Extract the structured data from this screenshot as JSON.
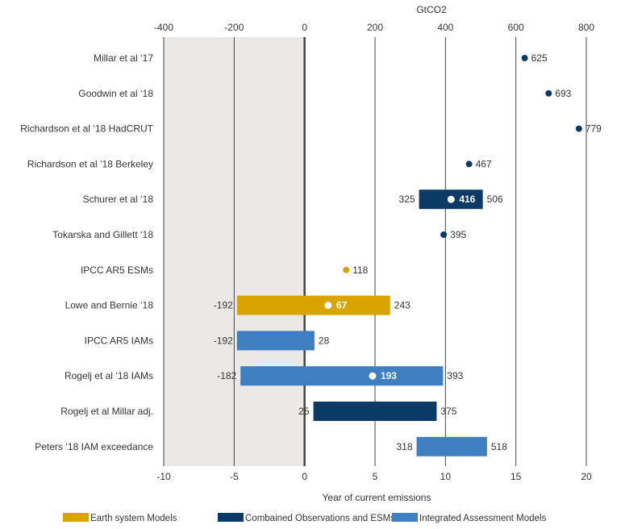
{
  "chart_data": {
    "type": "bar",
    "title": "",
    "top_axis": {
      "label": "GtCO2",
      "ticks": [
        -400,
        -200,
        0,
        200,
        400,
        600,
        800
      ],
      "tick_labels": [
        "-400",
        "-200",
        "0",
        "200",
        "400",
        "600",
        "800"
      ]
    },
    "bottom_axis": {
      "label": "Year of current emissions",
      "ticks": [
        -10,
        -5,
        0,
        5,
        10,
        15,
        20
      ],
      "tick_labels": [
        "-10",
        "-5",
        "0",
        "5",
        "10",
        "15",
        "20"
      ]
    },
    "xlim": [
      -400,
      800
    ],
    "shaded_region": [
      -400,
      0
    ],
    "categories": [
      "Millar et al ‘17",
      "Goodwin et al ‘18",
      "Richardson et al ‘18 HadCRUT",
      "Richardson et al ‘18 Berkeley",
      "Schurer et al ‘18",
      "Tokarska and Gillett ‘18",
      "IPCC AR5 ESMs",
      "Lowe and Bernie ‘18",
      "IPCC AR5 IAMs",
      "Rogelj et al ‘18 IAMs",
      "Rogelj et al Millar adj.",
      "Peters ‘18 IAM exceedance"
    ],
    "rows": [
      {
        "group": "obs",
        "low": null,
        "high": null,
        "point": 625,
        "low_label": "",
        "high_label": "",
        "point_label": "625"
      },
      {
        "group": "obs",
        "low": null,
        "high": null,
        "point": 693,
        "low_label": "",
        "high_label": "",
        "point_label": "693"
      },
      {
        "group": "obs",
        "low": null,
        "high": null,
        "point": 779,
        "low_label": "",
        "high_label": "",
        "point_label": "779"
      },
      {
        "group": "obs",
        "low": null,
        "high": null,
        "point": 467,
        "low_label": "",
        "high_label": "",
        "point_label": "467"
      },
      {
        "group": "obs",
        "low": 325,
        "high": 506,
        "point": 416,
        "low_label": "325",
        "high_label": "506",
        "point_label": "416"
      },
      {
        "group": "obs",
        "low": null,
        "high": null,
        "point": 395,
        "low_label": "",
        "high_label": "",
        "point_label": "395"
      },
      {
        "group": "esm",
        "low": null,
        "high": null,
        "point": 118,
        "low_label": "",
        "high_label": "",
        "point_label": "118"
      },
      {
        "group": "esm",
        "low": -192,
        "high": 243,
        "point": 67,
        "low_label": "-192",
        "high_label": "243",
        "point_label": "67"
      },
      {
        "group": "iam",
        "low": -192,
        "high": 28,
        "point": null,
        "low_label": "-192",
        "high_label": "28",
        "point_label": ""
      },
      {
        "group": "iam",
        "low": -182,
        "high": 393,
        "point": 193,
        "low_label": "-182",
        "high_label": "393",
        "point_label": "193"
      },
      {
        "group": "obs",
        "low": 25,
        "high": 375,
        "point": null,
        "low_label": "25",
        "high_label": "375",
        "point_label": ""
      },
      {
        "group": "iam",
        "low": 318,
        "high": 518,
        "point": null,
        "low_label": "318",
        "high_label": "518",
        "point_label": ""
      }
    ],
    "legend": {
      "placement": "bottom",
      "items": [
        {
          "key": "esm",
          "label": "Earth system Models"
        },
        {
          "key": "obs",
          "label": "Combained Observations and ESMs"
        },
        {
          "key": "iam",
          "label": "Integrated Assessment Models"
        }
      ]
    },
    "colors": {
      "esm": "#d9a400",
      "obs": "#0b3a66",
      "iam": "#3d7fc1",
      "shade": "#ebe9e8",
      "grid": "#444444"
    }
  }
}
